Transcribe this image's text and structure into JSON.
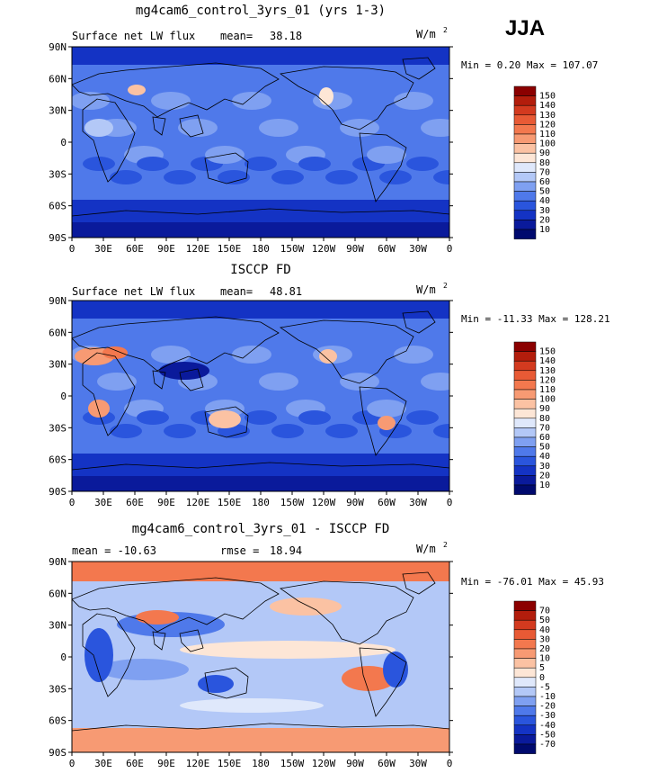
{
  "season": "JJA",
  "units_prefix": "W/m",
  "units_sup": "2",
  "panels": [
    {
      "title": "mg4cam6_control_3yrs_01 (yrs 1-3)",
      "left_label": "Surface net LW flux",
      "stat_label": "mean=",
      "stat_value": "38.18",
      "minmax": "Min =   0.20 Max = 107.07",
      "levels": [
        "150",
        "140",
        "130",
        "120",
        "110",
        "100",
        "90",
        "80",
        "70",
        "60",
        "50",
        "40",
        "30",
        "20",
        "10"
      ],
      "colors": [
        "#8b0000",
        "#b31d0c",
        "#d33a1f",
        "#e85a35",
        "#f3784e",
        "#f79a73",
        "#fbc2a3",
        "#fde6d6",
        "#dfe8fb",
        "#b3c8f7",
        "#7fa0f1",
        "#4f79ea",
        "#2a55dd",
        "#1433c4",
        "#0a1a9b",
        "#000a6e"
      ]
    },
    {
      "title": "ISCCP FD",
      "left_label": "Surface net LW flux",
      "stat_label": "mean=",
      "stat_value": "48.81",
      "minmax": "Min = -11.33 Max = 128.21",
      "levels": [
        "150",
        "140",
        "130",
        "120",
        "110",
        "100",
        "90",
        "80",
        "70",
        "60",
        "50",
        "40",
        "30",
        "20",
        "10"
      ],
      "colors": [
        "#8b0000",
        "#b31d0c",
        "#d33a1f",
        "#e85a35",
        "#f3784e",
        "#f79a73",
        "#fbc2a3",
        "#fde6d6",
        "#dfe8fb",
        "#b3c8f7",
        "#7fa0f1",
        "#4f79ea",
        "#2a55dd",
        "#1433c4",
        "#0a1a9b",
        "#000a6e"
      ]
    },
    {
      "title": "mg4cam6_control_3yrs_01 - ISCCP FD",
      "left_label": "mean = -10.63",
      "stat_label": "rmse =",
      "stat_value": "18.94",
      "minmax": "Min = -76.01 Max =  45.93",
      "levels": [
        "70",
        "50",
        "40",
        "30",
        "20",
        "10",
        "5",
        "0",
        "-5",
        "-10",
        "-20",
        "-30",
        "-40",
        "-50",
        "-70"
      ],
      "colors": [
        "#8b0000",
        "#b31d0c",
        "#d33a1f",
        "#e85a35",
        "#f3784e",
        "#f79a73",
        "#fbc2a3",
        "#fde6d6",
        "#dfe8fb",
        "#b3c8f7",
        "#7fa0f1",
        "#4f79ea",
        "#2a55dd",
        "#1433c4",
        "#0a1a9b",
        "#000a6e"
      ]
    }
  ],
  "lat_labels": [
    "90N",
    "60N",
    "30N",
    "0",
    "30S",
    "60S",
    "90S"
  ],
  "lon_labels": [
    "0",
    "30E",
    "60E",
    "90E",
    "120E",
    "150E",
    "180",
    "150W",
    "120W",
    "90W",
    "60W",
    "30W",
    "0"
  ],
  "chart_data": [
    {
      "type": "heatmap",
      "title": "mg4cam6_control_3yrs_01 (yrs 1-3)",
      "variable": "Surface net LW flux",
      "units": "W/m2",
      "mean": 38.18,
      "min": 0.2,
      "max": 107.07,
      "contour_levels": [
        10,
        20,
        30,
        40,
        50,
        60,
        70,
        80,
        90,
        100,
        110,
        120,
        130,
        140,
        150
      ],
      "x_range": [
        "0",
        "0"
      ],
      "y_range": [
        "90S",
        "90N"
      ]
    },
    {
      "type": "heatmap",
      "title": "ISCCP FD",
      "variable": "Surface net LW flux",
      "units": "W/m2",
      "mean": 48.81,
      "min": -11.33,
      "max": 128.21,
      "contour_levels": [
        10,
        20,
        30,
        40,
        50,
        60,
        70,
        80,
        90,
        100,
        110,
        120,
        130,
        140,
        150
      ],
      "x_range": [
        "0",
        "0"
      ],
      "y_range": [
        "90S",
        "90N"
      ]
    },
    {
      "type": "heatmap",
      "title": "mg4cam6_control_3yrs_01 - ISCCP FD",
      "units": "W/m2",
      "mean": -10.63,
      "rmse": 18.94,
      "min": -76.01,
      "max": 45.93,
      "contour_levels": [
        -70,
        -50,
        -40,
        -30,
        -20,
        -10,
        -5,
        0,
        5,
        10,
        20,
        30,
        40,
        50,
        70
      ],
      "x_range": [
        "0",
        "0"
      ],
      "y_range": [
        "90S",
        "90N"
      ]
    }
  ]
}
